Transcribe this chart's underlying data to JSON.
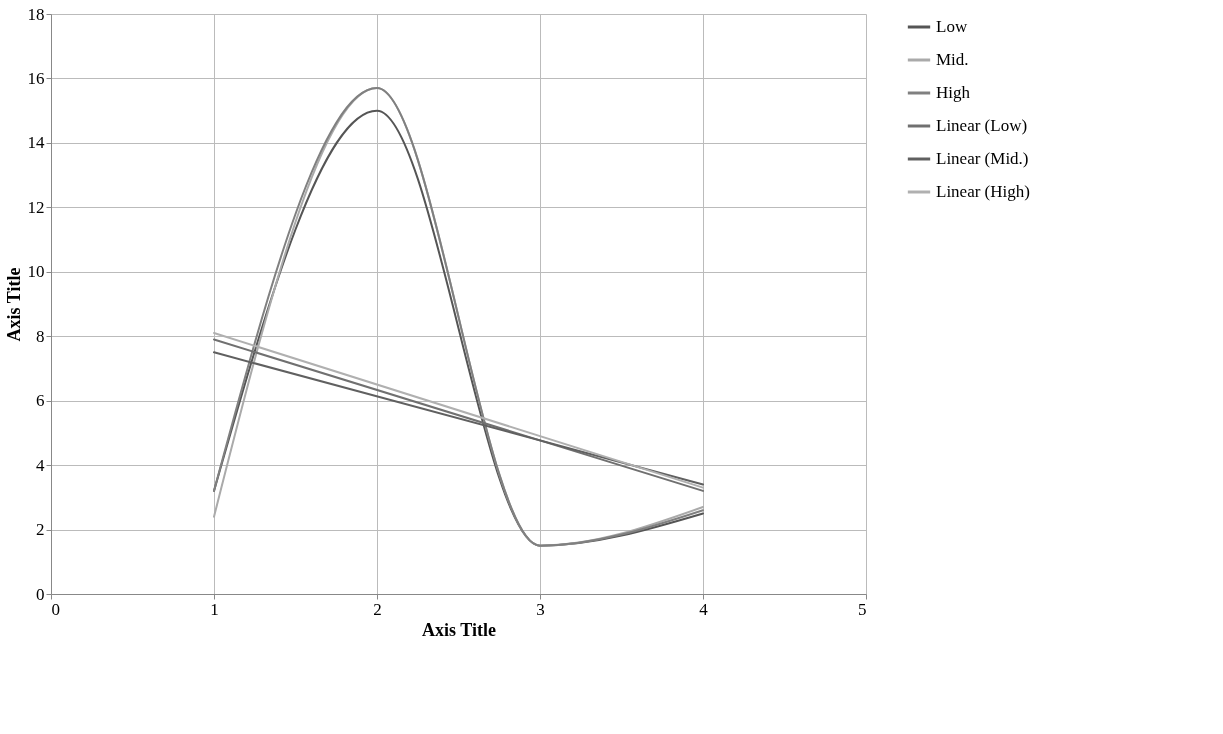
{
  "chart_data": {
    "type": "line",
    "xlabel": "Axis Title",
    "ylabel": "Axis Title",
    "xlim": [
      0,
      5
    ],
    "xticks": [
      0,
      1,
      2,
      3,
      4,
      5
    ],
    "ylim": [
      0,
      18
    ],
    "yticks": [
      0,
      2,
      4,
      6,
      8,
      10,
      12,
      14,
      16,
      18
    ],
    "grid": true,
    "legend": "right",
    "marker": "none",
    "line_style": "solid",
    "series": [
      {
        "name": "Low",
        "color": "#555555",
        "x": [
          1,
          2,
          3,
          4
        ],
        "values": [
          3.2,
          15.0,
          1.5,
          2.5
        ]
      },
      {
        "name": "Mid.",
        "color": "#aaaaaa",
        "x": [
          1,
          2,
          3,
          4
        ],
        "values": [
          2.4,
          15.7,
          1.5,
          2.7
        ]
      },
      {
        "name": "High",
        "color": "#808080",
        "x": [
          1,
          2,
          3,
          4
        ],
        "values": [
          3.2,
          15.7,
          1.5,
          2.6
        ]
      },
      {
        "name": "Linear (Low)",
        "color": "#707070",
        "x": [
          1,
          4
        ],
        "values": [
          7.9,
          3.2
        ]
      },
      {
        "name": "Linear (Mid.)",
        "color": "#606060",
        "x": [
          1,
          4
        ],
        "values": [
          7.5,
          3.4
        ]
      },
      {
        "name": "Linear (High)",
        "color": "#b0b0b0",
        "x": [
          1,
          4
        ],
        "values": [
          8.1,
          3.3
        ]
      }
    ]
  }
}
